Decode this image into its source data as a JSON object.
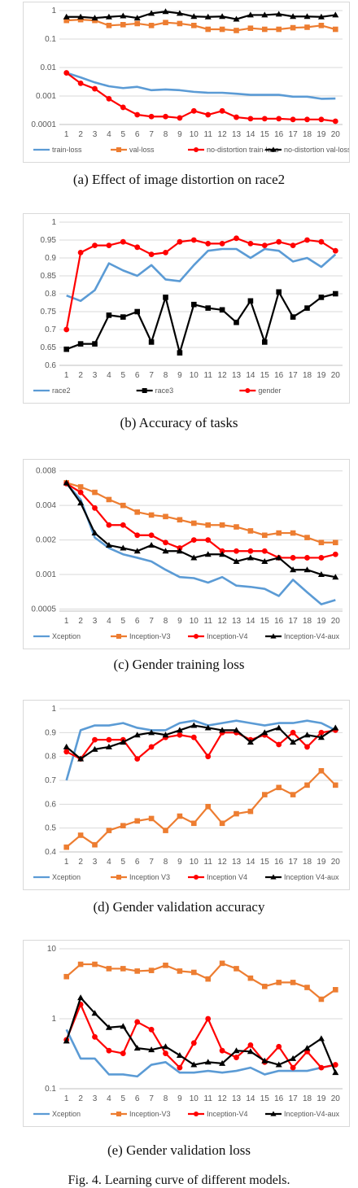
{
  "charts": [
    {
      "caption": "(a) Effect of image distortion on race2",
      "chart_data": {
        "type": "line",
        "scale": "log",
        "x": [
          1,
          2,
          3,
          4,
          5,
          6,
          7,
          8,
          9,
          10,
          11,
          12,
          13,
          14,
          15,
          16,
          17,
          18,
          19,
          20
        ],
        "yticks": [
          {
            "v": 1,
            "label": "1"
          },
          {
            "v": 0.1,
            "label": "0.1"
          },
          {
            "v": 0.01,
            "label": "0.01"
          },
          {
            "v": 0.001,
            "label": "0.001"
          },
          {
            "v": 0.0001,
            "label": "0.0001"
          }
        ],
        "ylim": [
          0.0001,
          1
        ],
        "series": [
          {
            "name": "train-loss",
            "color": "#5b9bd5",
            "marker": "none",
            "values": [
              0.0065,
              0.0045,
              0.003,
              0.0022,
              0.0019,
              0.0021,
              0.0016,
              0.0017,
              0.0016,
              0.0014,
              0.0013,
              0.0013,
              0.0012,
              0.0011,
              0.0011,
              0.0011,
              0.00095,
              0.00095,
              0.0008,
              0.00082
            ]
          },
          {
            "name": "val-loss",
            "color": "#ed7d31",
            "marker": "square",
            "values": [
              0.45,
              0.48,
              0.45,
              0.3,
              0.32,
              0.35,
              0.3,
              0.38,
              0.35,
              0.3,
              0.22,
              0.22,
              0.2,
              0.24,
              0.22,
              0.22,
              0.25,
              0.26,
              0.3,
              0.22
            ]
          },
          {
            "name": "no-distortion train-loss",
            "color": "#ff0000",
            "marker": "circle",
            "values": [
              0.0065,
              0.0028,
              0.0018,
              0.0008,
              0.0004,
              0.00022,
              0.00019,
              0.00019,
              0.00017,
              0.0003,
              0.00022,
              0.0003,
              0.00018,
              0.00016,
              0.00016,
              0.00016,
              0.00015,
              0.00015,
              0.00015,
              0.00013
            ]
          },
          {
            "name": "no-distortion val-loss",
            "color": "#000000",
            "marker": "triangle",
            "values": [
              0.6,
              0.6,
              0.55,
              0.6,
              0.65,
              0.55,
              0.8,
              0.92,
              0.8,
              0.62,
              0.6,
              0.62,
              0.5,
              0.7,
              0.7,
              0.75,
              0.62,
              0.62,
              0.6,
              0.7
            ]
          }
        ]
      }
    },
    {
      "caption": "(b) Accuracy of tasks",
      "chart_data": {
        "type": "line",
        "scale": "linear",
        "x": [
          1,
          2,
          3,
          4,
          5,
          6,
          7,
          8,
          9,
          10,
          11,
          12,
          13,
          14,
          15,
          16,
          17,
          18,
          19,
          20
        ],
        "yticks": [
          {
            "v": 1,
            "label": "1"
          },
          {
            "v": 0.95,
            "label": "0.95"
          },
          {
            "v": 0.9,
            "label": "0.9"
          },
          {
            "v": 0.85,
            "label": "0.85"
          },
          {
            "v": 0.8,
            "label": "0.8"
          },
          {
            "v": 0.75,
            "label": "0.75"
          },
          {
            "v": 0.7,
            "label": "0.7"
          },
          {
            "v": 0.65,
            "label": "0.65"
          },
          {
            "v": 0.6,
            "label": "0.6"
          }
        ],
        "ylim": [
          0.6,
          1
        ],
        "series": [
          {
            "name": "race2",
            "color": "#5b9bd5",
            "marker": "none",
            "values": [
              0.795,
              0.78,
              0.81,
              0.885,
              0.865,
              0.85,
              0.88,
              0.84,
              0.835,
              0.88,
              0.92,
              0.925,
              0.925,
              0.9,
              0.925,
              0.92,
              0.89,
              0.9,
              0.875,
              0.91
            ]
          },
          {
            "name": "race3",
            "color": "#000000",
            "marker": "square",
            "values": [
              0.645,
              0.66,
              0.66,
              0.74,
              0.735,
              0.75,
              0.665,
              0.79,
              0.635,
              0.77,
              0.76,
              0.755,
              0.72,
              0.78,
              0.665,
              0.805,
              0.735,
              0.76,
              0.79,
              0.8
            ]
          },
          {
            "name": "gender",
            "color": "#ff0000",
            "marker": "circle",
            "values": [
              0.7,
              0.915,
              0.935,
              0.935,
              0.945,
              0.93,
              0.91,
              0.915,
              0.945,
              0.95,
              0.94,
              0.94,
              0.955,
              0.94,
              0.935,
              0.945,
              0.935,
              0.95,
              0.945,
              0.92
            ]
          }
        ]
      }
    },
    {
      "caption": "(c) Gender training loss",
      "chart_data": {
        "type": "line",
        "scale": "log",
        "x": [
          1,
          2,
          3,
          4,
          5,
          6,
          7,
          8,
          9,
          10,
          11,
          12,
          13,
          14,
          15,
          16,
          17,
          18,
          19,
          20
        ],
        "yticks": [
          {
            "v": 0.008,
            "label": "0.008"
          },
          {
            "v": 0.004,
            "label": "0.004"
          },
          {
            "v": 0.002,
            "label": "0.002"
          },
          {
            "v": 0.001,
            "label": "0.001"
          },
          {
            "v": 0.0005,
            "label": "0.0005"
          }
        ],
        "ylim": [
          0.00048,
          0.0085
        ],
        "series": [
          {
            "name": "Xception",
            "color": "#5b9bd5",
            "marker": "none",
            "values": [
              0.0062,
              0.0045,
              0.0021,
              0.0017,
              0.0015,
              0.0014,
              0.0013,
              0.0011,
              0.00095,
              0.00093,
              0.00085,
              0.00095,
              0.0008,
              0.00078,
              0.00075,
              0.00065,
              0.0009,
              0.0007,
              0.00055,
              0.0006
            ]
          },
          {
            "name": "Inception-V3",
            "color": "#ed7d31",
            "marker": "square",
            "values": [
              0.0063,
              0.0058,
              0.0052,
              0.0045,
              0.004,
              0.0035,
              0.0033,
              0.0032,
              0.003,
              0.0028,
              0.0027,
              0.0027,
              0.0026,
              0.0024,
              0.0022,
              0.0023,
              0.0023,
              0.0021,
              0.0019,
              0.0019
            ]
          },
          {
            "name": "Inception-V4",
            "color": "#ff0000",
            "marker": "circle",
            "values": [
              0.0062,
              0.0052,
              0.0038,
              0.0027,
              0.0027,
              0.0022,
              0.0022,
              0.0019,
              0.0017,
              0.002,
              0.002,
              0.0016,
              0.0016,
              0.0016,
              0.0016,
              0.0014,
              0.0014,
              0.0014,
              0.0014,
              0.0015
            ]
          },
          {
            "name": "Inception-V4-aux",
            "color": "#000000",
            "marker": "triangle",
            "values": [
              0.0063,
              0.0042,
              0.0023,
              0.0018,
              0.0017,
              0.0016,
              0.0018,
              0.0016,
              0.0016,
              0.0014,
              0.0015,
              0.0015,
              0.0013,
              0.0014,
              0.0013,
              0.0014,
              0.0011,
              0.0011,
              0.001,
              0.00095
            ]
          }
        ]
      }
    },
    {
      "caption": "(d) Gender validation accuracy",
      "chart_data": {
        "type": "line",
        "scale": "linear",
        "x": [
          1,
          2,
          3,
          4,
          5,
          6,
          7,
          8,
          9,
          10,
          11,
          12,
          13,
          14,
          15,
          16,
          17,
          18,
          19,
          20
        ],
        "yticks": [
          {
            "v": 1,
            "label": "1"
          },
          {
            "v": 0.9,
            "label": "0.9"
          },
          {
            "v": 0.8,
            "label": "0.8"
          },
          {
            "v": 0.7,
            "label": "0.7"
          },
          {
            "v": 0.6,
            "label": "0.6"
          },
          {
            "v": 0.5,
            "label": "0.5"
          },
          {
            "v": 0.4,
            "label": "0.4"
          }
        ],
        "ylim": [
          0.4,
          1
        ],
        "series": [
          {
            "name": "Xception",
            "color": "#5b9bd5",
            "marker": "none",
            "values": [
              0.7,
              0.91,
              0.93,
              0.93,
              0.94,
              0.92,
              0.91,
              0.91,
              0.94,
              0.95,
              0.93,
              0.94,
              0.95,
              0.94,
              0.93,
              0.94,
              0.94,
              0.95,
              0.94,
              0.91
            ]
          },
          {
            "name": "Inception V3",
            "color": "#ed7d31",
            "marker": "square",
            "values": [
              0.42,
              0.47,
              0.43,
              0.49,
              0.51,
              0.53,
              0.54,
              0.49,
              0.55,
              0.52,
              0.59,
              0.52,
              0.56,
              0.57,
              0.64,
              0.67,
              0.64,
              0.68,
              0.74,
              0.68
            ]
          },
          {
            "name": "Inception V4",
            "color": "#ff0000",
            "marker": "circle",
            "values": [
              0.82,
              0.79,
              0.87,
              0.87,
              0.87,
              0.79,
              0.84,
              0.88,
              0.89,
              0.88,
              0.8,
              0.9,
              0.9,
              0.87,
              0.89,
              0.85,
              0.9,
              0.84,
              0.9,
              0.91
            ]
          },
          {
            "name": "Inception V4-aux",
            "color": "#000000",
            "marker": "triangle",
            "values": [
              0.84,
              0.79,
              0.83,
              0.84,
              0.86,
              0.89,
              0.9,
              0.89,
              0.91,
              0.93,
              0.92,
              0.91,
              0.91,
              0.86,
              0.9,
              0.92,
              0.86,
              0.89,
              0.88,
              0.92
            ]
          }
        ]
      }
    },
    {
      "caption": "(e) Gender validation loss",
      "chart_data": {
        "type": "line",
        "scale": "log",
        "x": [
          1,
          2,
          3,
          4,
          5,
          6,
          7,
          8,
          9,
          10,
          11,
          12,
          13,
          14,
          15,
          16,
          17,
          18,
          19,
          20
        ],
        "yticks": [
          {
            "v": 10,
            "label": "10"
          },
          {
            "v": 1,
            "label": "1"
          },
          {
            "v": 0.1,
            "label": "0.1"
          }
        ],
        "ylim": [
          0.1,
          10
        ],
        "series": [
          {
            "name": "Xception",
            "color": "#5b9bd5",
            "marker": "none",
            "values": [
              0.7,
              0.27,
              0.27,
              0.16,
              0.16,
              0.15,
              0.22,
              0.24,
              0.17,
              0.17,
              0.18,
              0.17,
              0.18,
              0.2,
              0.16,
              0.18,
              0.18,
              0.18,
              0.2,
              0.22
            ]
          },
          {
            "name": "Inception-V3",
            "color": "#ed7d31",
            "marker": "square",
            "values": [
              4.0,
              6.0,
              6.0,
              5.2,
              5.2,
              4.8,
              4.9,
              5.8,
              4.8,
              4.6,
              3.7,
              6.2,
              5.2,
              3.8,
              2.9,
              3.3,
              3.3,
              2.8,
              1.9,
              2.6
            ]
          },
          {
            "name": "Inception-V4",
            "color": "#ff0000",
            "marker": "circle",
            "values": [
              0.5,
              1.6,
              0.55,
              0.35,
              0.32,
              0.9,
              0.7,
              0.32,
              0.2,
              0.45,
              1.0,
              0.35,
              0.28,
              0.42,
              0.24,
              0.4,
              0.2,
              0.34,
              0.2,
              0.22
            ]
          },
          {
            "name": "Inception-V4-aux",
            "color": "#000000",
            "marker": "triangle",
            "values": [
              0.48,
              2.0,
              1.2,
              0.75,
              0.78,
              0.38,
              0.36,
              0.4,
              0.3,
              0.22,
              0.24,
              0.23,
              0.35,
              0.34,
              0.25,
              0.22,
              0.27,
              0.38,
              0.52,
              0.17
            ]
          }
        ]
      }
    }
  ],
  "figure_caption": "Fig. 4.  Learning curve of different models."
}
